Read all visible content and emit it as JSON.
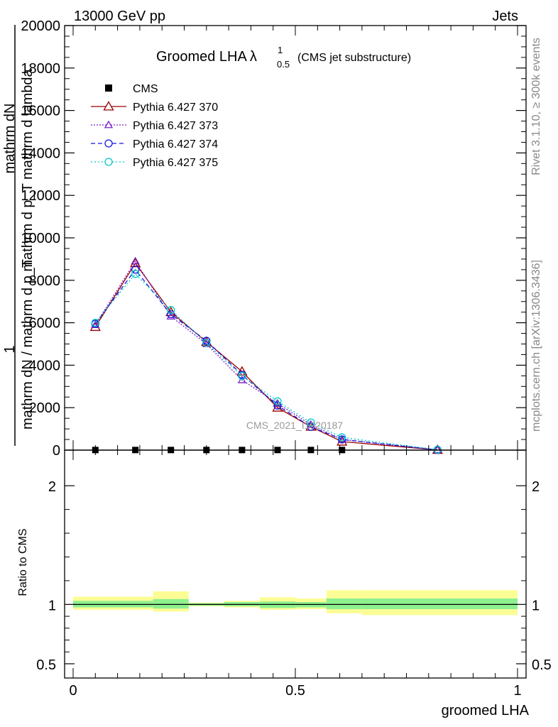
{
  "header": {
    "left": "13000 GeV pp",
    "right": "Jets"
  },
  "side_labels": {
    "rivet": "Rivet 3.1.10, ≥ 300k events",
    "mcplots": "mcplots.cern.ch [arXiv:1306.3436]"
  },
  "watermark": "CMS_2021_I1920187",
  "chart_data": [
    {
      "type": "line",
      "title": "Groomed LHA",
      "title_symbol": "λ",
      "title_sup": "1",
      "title_sub": "0.5",
      "subtitle": "(CMS jet substructure)",
      "ylabel_numerator": "mathrm dN",
      "ylabel_numerator_sub": "mathrm d p_T mathrm d lambda",
      "ylabel_one": "1",
      "ylabel_denominator": "mathrm dN / mathrm d p_T",
      "xlim": [
        0,
        1
      ],
      "ylim": [
        0,
        20000
      ],
      "yticks": [
        0,
        2000,
        4000,
        6000,
        8000,
        10000,
        12000,
        14000,
        16000,
        18000,
        20000
      ],
      "ytick_labels": [
        "0",
        "2000",
        "4000",
        "6000",
        "8000",
        "10000",
        "12000",
        "14000",
        "16000",
        "18000",
        "20000"
      ],
      "legend_position": "top-left",
      "cms": {
        "name": "CMS",
        "x": [
          0.05,
          0.14,
          0.22,
          0.3,
          0.38,
          0.46,
          0.535,
          0.605
        ],
        "y": [
          5,
          5,
          5,
          5,
          5,
          5,
          5,
          5
        ]
      },
      "series": [
        {
          "name": "Pythia 6.427 370",
          "color": "#990000",
          "dash": "",
          "marker": "triangle",
          "x": [
            0.05,
            0.14,
            0.22,
            0.3,
            0.38,
            0.46,
            0.535,
            0.605,
            0.82
          ],
          "y": [
            5800,
            8800,
            6500,
            5100,
            3700,
            2000,
            1100,
            400,
            10
          ]
        },
        {
          "name": "Pythia 6.427 373",
          "color": "#7a1fc8",
          "dash": "2,2",
          "marker": "triangle-small",
          "x": [
            0.05,
            0.14,
            0.22,
            0.3,
            0.38,
            0.46,
            0.535,
            0.605,
            0.82
          ],
          "y": [
            5900,
            8900,
            6300,
            5000,
            3300,
            2200,
            1200,
            500,
            10
          ]
        },
        {
          "name": "Pythia 6.427 374",
          "color": "#1515e0",
          "dash": "6,4",
          "marker": "circle",
          "x": [
            0.05,
            0.14,
            0.22,
            0.3,
            0.38,
            0.46,
            0.535,
            0.605,
            0.82
          ],
          "y": [
            5950,
            8500,
            6400,
            5150,
            3550,
            2100,
            1100,
            500,
            10
          ]
        },
        {
          "name": "Pythia 6.427 375",
          "color": "#00c8c8",
          "dash": "2,3",
          "marker": "circle",
          "x": [
            0.05,
            0.14,
            0.22,
            0.3,
            0.38,
            0.46,
            0.535,
            0.605,
            0.82
          ],
          "y": [
            6000,
            8300,
            6600,
            5050,
            3500,
            2300,
            1300,
            600,
            20
          ]
        }
      ]
    },
    {
      "type": "area",
      "ylabel": "Ratio to CMS",
      "xlabel": "groomed LHA",
      "xlim": [
        0,
        1
      ],
      "ylim": [
        0.38,
        2.3
      ],
      "yticks": [
        0.5,
        1,
        2
      ],
      "ytick_labels": [
        "0.5",
        "1",
        "2"
      ],
      "xticks": [
        0,
        0.5,
        1
      ],
      "xtick_labels": [
        "0",
        "0.5",
        "1"
      ],
      "reference": 1,
      "bins": [
        {
          "x0": 0.0,
          "x1": 0.18,
          "inner": [
            0.975,
            1.03
          ],
          "outer": [
            0.955,
            1.065
          ]
        },
        {
          "x0": 0.18,
          "x1": 0.26,
          "inner": [
            0.965,
            1.045
          ],
          "outer": [
            0.94,
            1.11
          ]
        },
        {
          "x0": 0.26,
          "x1": 0.34,
          "inner": [
            0.99,
            1.01
          ],
          "outer": [
            0.985,
            1.015
          ]
        },
        {
          "x0": 0.34,
          "x1": 0.42,
          "inner": [
            0.985,
            1.02
          ],
          "outer": [
            0.975,
            1.03
          ]
        },
        {
          "x0": 0.42,
          "x1": 0.5,
          "inner": [
            0.97,
            1.025
          ],
          "outer": [
            0.955,
            1.06
          ]
        },
        {
          "x0": 0.5,
          "x1": 0.57,
          "inner": [
            0.975,
            1.02
          ],
          "outer": [
            0.96,
            1.05
          ]
        },
        {
          "x0": 0.57,
          "x1": 0.65,
          "inner": [
            0.96,
            1.05
          ],
          "outer": [
            0.925,
            1.12
          ]
        },
        {
          "x0": 0.65,
          "x1": 1.0,
          "inner": [
            0.96,
            1.05
          ],
          "outer": [
            0.91,
            1.12
          ]
        }
      ],
      "band_colors": {
        "inner": "#8ef08e",
        "outer": "#fdfd96"
      }
    }
  ]
}
